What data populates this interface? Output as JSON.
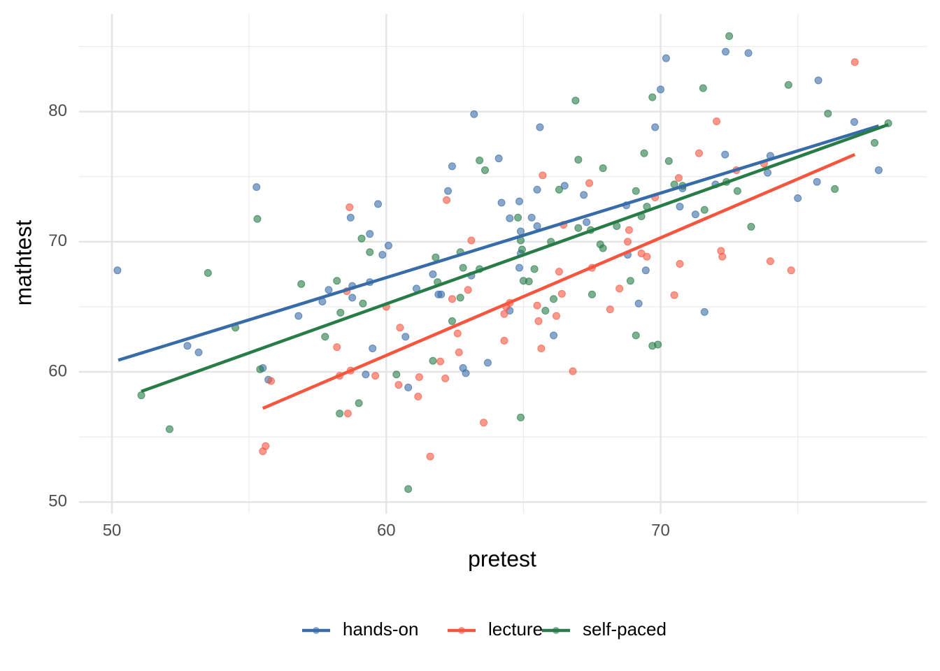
{
  "chart_data": {
    "type": "scatter",
    "x_label": "pretest",
    "y_label": "mathtest",
    "xlim": [
      48.8,
      79.7
    ],
    "ylim": [
      49.1,
      87.5
    ],
    "xticks": [
      50,
      60,
      70
    ],
    "yticks": [
      50,
      60,
      70,
      80
    ],
    "xminor": [
      55,
      65,
      75
    ],
    "yminor": [
      55,
      65,
      75,
      85
    ],
    "grid": true,
    "legend": "bottom",
    "series": [
      {
        "name": "hands-on",
        "color": "#386ca8",
        "x": [
          50.2,
          52.75,
          53.16,
          55.27,
          55.5,
          55.7,
          56.8,
          57.67,
          57.9,
          58.7,
          58.76,
          58.76,
          59.4,
          59.4,
          59.7,
          59.86,
          60.08,
          59.25,
          59.5,
          60.7,
          60.8,
          61.1,
          61.7,
          61.9,
          62.0,
          62.25,
          62.4,
          62.8,
          62.9,
          63.2,
          63.1,
          63.7,
          64.1,
          64.2,
          64.5,
          64.5,
          64.85,
          64.85,
          64.9,
          64.9,
          65.3,
          65.5,
          65.5,
          65.6,
          66.1,
          66.5,
          67.2,
          67.3,
          68.75,
          68.8,
          69.2,
          69.46,
          69.8,
          70.0,
          70.2,
          70.7,
          70.8,
          71.27,
          71.6,
          72.0,
          72.35,
          72.37,
          73.2,
          73.9,
          74.0,
          75.0,
          75.7,
          75.75,
          77.06,
          77.95
        ],
        "y": [
          67.8,
          62.0,
          61.5,
          74.2,
          60.3,
          59.4,
          64.3,
          65.4,
          66.3,
          71.85,
          66.6,
          65.7,
          70.6,
          66.9,
          72.9,
          69.0,
          69.7,
          59.8,
          61.8,
          62.7,
          58.8,
          66.4,
          67.5,
          65.95,
          65.95,
          73.9,
          75.8,
          60.3,
          59.9,
          79.8,
          67.4,
          60.7,
          76.4,
          73.0,
          71.8,
          64.7,
          73.1,
          68.0,
          70.8,
          69.1,
          71.85,
          74.0,
          71.2,
          78.8,
          62.8,
          74.3,
          73.6,
          71.5,
          72.8,
          69.0,
          65.25,
          67.8,
          78.8,
          81.7,
          84.1,
          72.7,
          74.1,
          72.1,
          64.6,
          74.4,
          76.7,
          84.6,
          84.5,
          75.3,
          76.6,
          73.35,
          74.6,
          82.4,
          79.2,
          75.5
        ],
        "fit": {
          "x": [
            50.23,
            77.95
          ],
          "y": [
            60.9,
            78.9
          ]
        }
      },
      {
        "name": "lecture",
        "color": "#f8553f",
        "x": [
          55.5,
          55.6,
          55.8,
          58.2,
          58.3,
          58.6,
          58.56,
          58.66,
          58.7,
          59.6,
          60.0,
          60.45,
          60.5,
          61.16,
          61.2,
          61.6,
          61.97,
          62.15,
          62.2,
          62.4,
          62.6,
          62.65,
          62.98,
          63.1,
          63.55,
          64.3,
          64.3,
          64.37,
          64.5,
          65.5,
          65.55,
          65.65,
          65.7,
          66.2,
          66.3,
          66.4,
          66.46,
          66.8,
          67.4,
          67.5,
          68.16,
          68.5,
          68.8,
          68.85,
          69.3,
          69.5,
          69.8,
          70.5,
          70.66,
          70.7,
          71.4,
          72.04,
          72.2,
          72.25,
          72.76,
          73.77,
          74.0,
          74.76,
          77.08
        ],
        "y": [
          53.9,
          54.3,
          59.3,
          61.9,
          59.7,
          56.8,
          66.2,
          72.65,
          60.1,
          59.7,
          65.0,
          59.0,
          63.4,
          58.1,
          59.6,
          53.5,
          60.8,
          59.5,
          73.2,
          65.6,
          62.95,
          61.5,
          66.3,
          70.1,
          56.1,
          62.4,
          64.45,
          65.0,
          65.3,
          65.1,
          63.9,
          61.8,
          75.1,
          64.3,
          67.7,
          66.0,
          71.3,
          60.05,
          74.5,
          68.0,
          64.8,
          66.4,
          70.0,
          70.9,
          69.1,
          68.85,
          73.4,
          65.9,
          74.9,
          68.3,
          76.8,
          79.25,
          69.3,
          68.85,
          75.5,
          76.0,
          68.5,
          67.8,
          83.8
        ],
        "fit": {
          "x": [
            55.5,
            77.08
          ],
          "y": [
            57.2,
            76.7
          ]
        }
      },
      {
        "name": "self-paced",
        "color": "#277c47",
        "x": [
          51.07,
          52.1,
          53.5,
          54.5,
          55.3,
          55.4,
          56.9,
          57.77,
          58.2,
          58.3,
          58.33,
          59.0,
          59.1,
          59.15,
          59.4,
          60.37,
          60.8,
          61.7,
          61.8,
          61.87,
          62.4,
          62.7,
          62.7,
          62.8,
          63.4,
          63.4,
          63.6,
          64.8,
          64.9,
          64.9,
          64.95,
          65.0,
          65.2,
          65.4,
          65.8,
          66.0,
          66.1,
          66.3,
          66.9,
          67.0,
          67.0,
          67.45,
          67.5,
          67.8,
          67.9,
          67.9,
          68.4,
          68.9,
          69.1,
          69.1,
          69.3,
          69.4,
          69.5,
          69.7,
          69.7,
          69.9,
          70.3,
          70.5,
          70.8,
          71.55,
          71.6,
          72.4,
          72.5,
          72.8,
          73.3,
          74.66,
          76.1,
          76.35,
          77.8,
          78.3
        ],
        "y": [
          58.2,
          55.6,
          67.6,
          63.4,
          71.75,
          60.2,
          66.75,
          62.7,
          67.0,
          56.8,
          64.55,
          57.6,
          70.25,
          65.25,
          69.2,
          59.8,
          51.0,
          60.85,
          68.8,
          66.9,
          63.9,
          65.7,
          69.2,
          68.0,
          76.25,
          67.9,
          75.5,
          71.85,
          56.5,
          70.1,
          69.4,
          67.0,
          66.95,
          67.9,
          64.7,
          70.0,
          65.6,
          74.0,
          80.85,
          76.3,
          71.05,
          70.9,
          65.95,
          69.8,
          69.5,
          75.65,
          71.2,
          67.0,
          62.8,
          73.9,
          71.95,
          76.8,
          72.7,
          81.1,
          62.0,
          62.1,
          76.2,
          74.4,
          74.3,
          81.8,
          72.45,
          74.6,
          85.8,
          73.9,
          71.15,
          82.05,
          79.85,
          74.05,
          77.6,
          79.1
        ],
        "fit": {
          "x": [
            51.07,
            78.3
          ],
          "y": [
            58.5,
            79.0
          ]
        }
      }
    ]
  }
}
